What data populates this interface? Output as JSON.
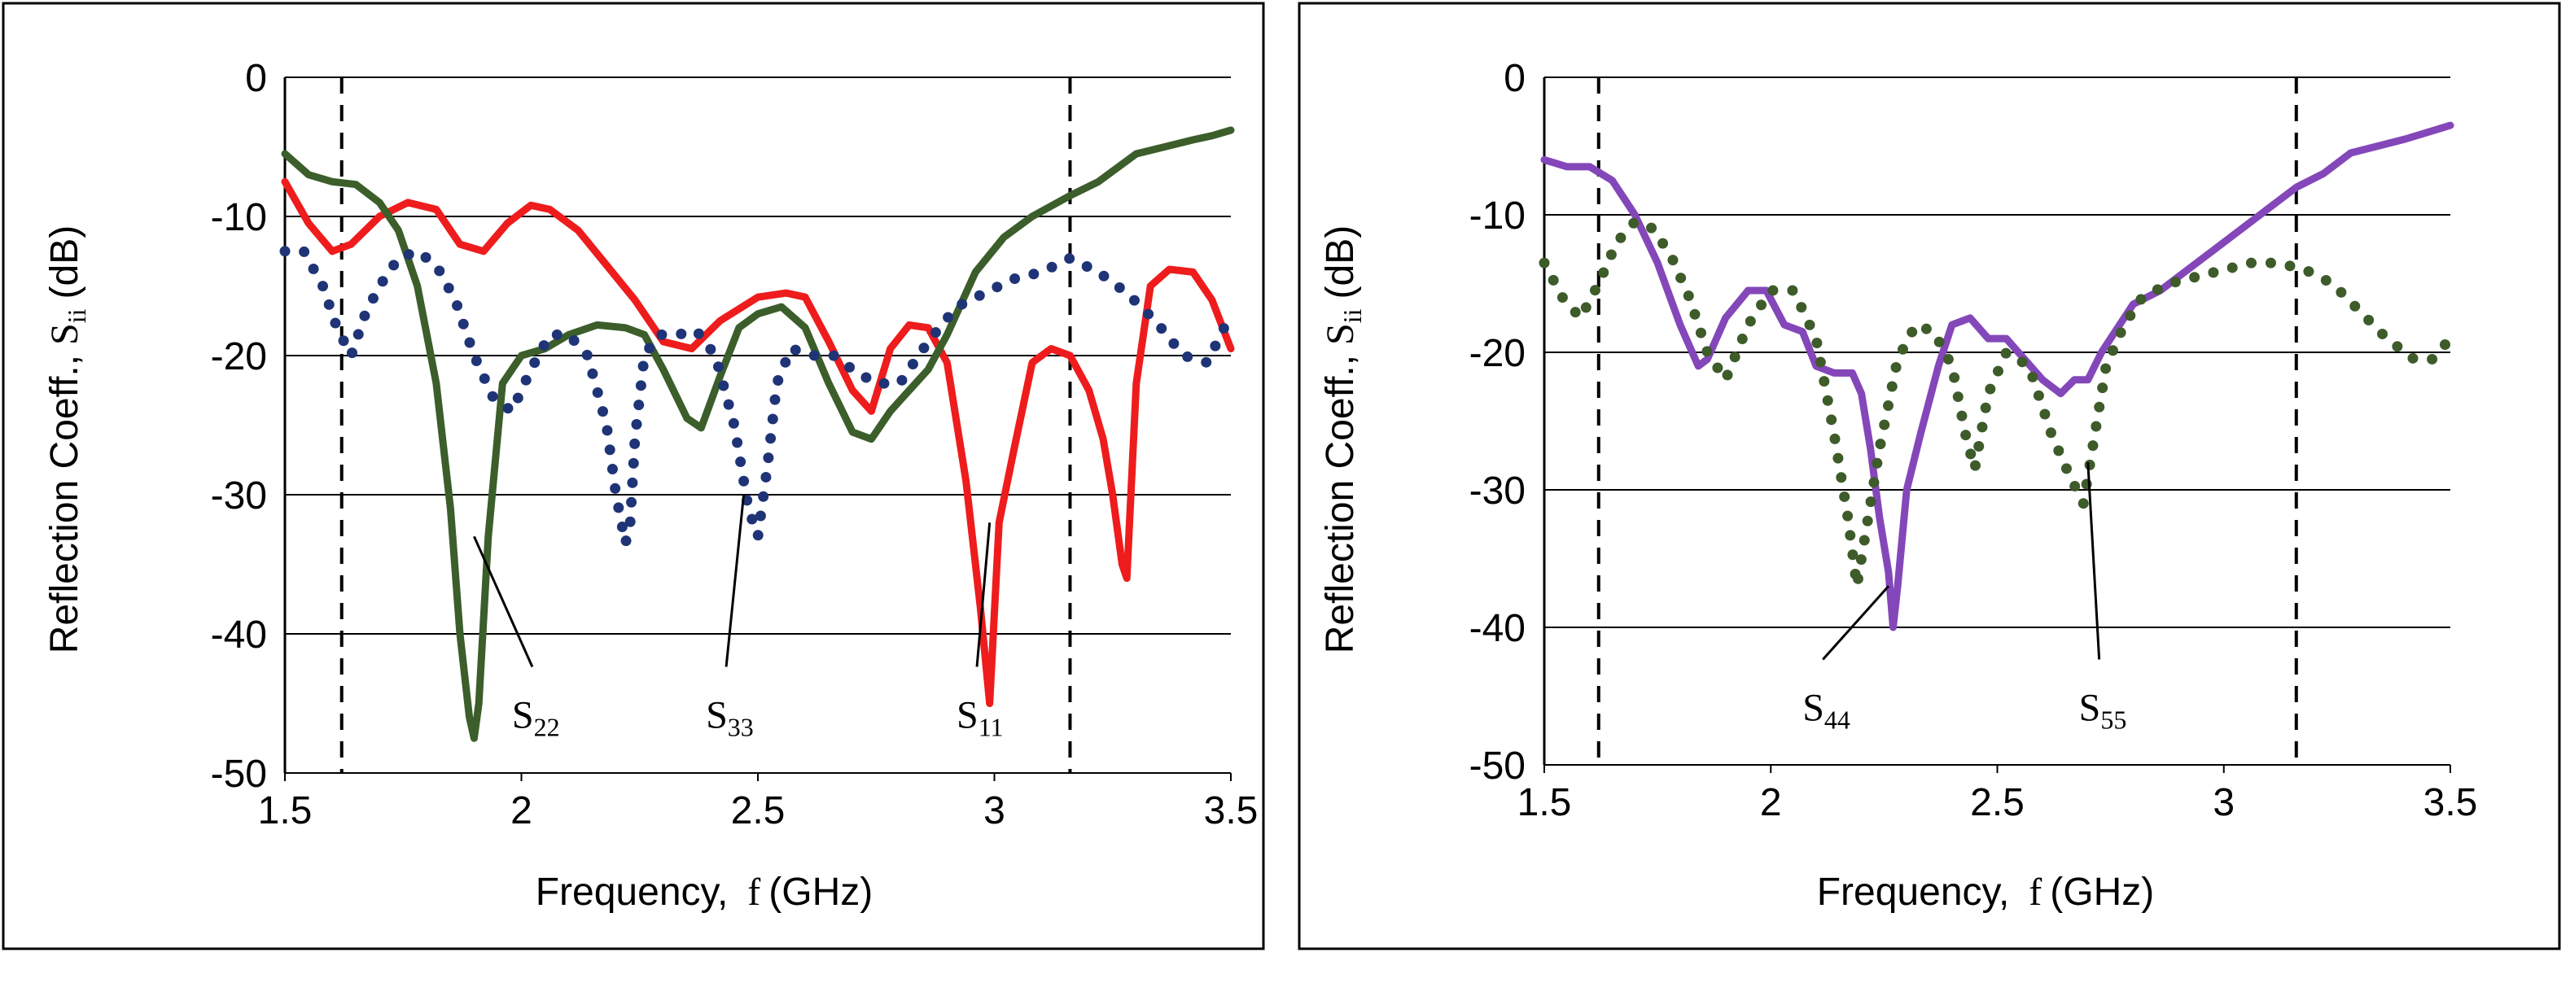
{
  "figure": {
    "panels": [
      {
        "id": "left",
        "xlabel": "Frequency,",
        "xlabel_symbol": "f",
        "xlabel_unit": "(GHz)",
        "ylabel": "Reflection Coeff.,",
        "ylabel_symbol": "S",
        "ylabel_sub": "ii",
        "ylabel_unit": "(dB)"
      },
      {
        "id": "right",
        "xlabel": "Frequency,",
        "xlabel_symbol": "f",
        "xlabel_unit": "(GHz)",
        "ylabel": "Reflection Coeff.,",
        "ylabel_symbol": "S",
        "ylabel_sub": "ii",
        "ylabel_unit": "(dB)"
      }
    ]
  },
  "chart_data": [
    {
      "type": "line",
      "panel": "left",
      "title": "",
      "xlim": [
        1.5,
        3.5
      ],
      "ylim": [
        -50,
        0
      ],
      "xticks": [
        "1.5",
        "2",
        "2.5",
        "3",
        "3.5"
      ],
      "yticks": [
        "0",
        "-10",
        "-20",
        "-30",
        "-40",
        "-50"
      ],
      "xtick_values": [
        1.5,
        2,
        2.5,
        3,
        3.5
      ],
      "ytick_values": [
        0,
        -10,
        -20,
        -30,
        -40,
        -50
      ],
      "grid": "horizontal",
      "vlines": [
        1.62,
        3.16
      ],
      "series": [
        {
          "name": "S11",
          "label_main": "S",
          "label_sub": "11",
          "color": "#ee1c1c",
          "style": "solid",
          "label_at": [
            2.92,
            -45
          ],
          "pointer_to": [
            2.99,
            -32
          ],
          "x": [
            1.5,
            1.55,
            1.6,
            1.64,
            1.7,
            1.76,
            1.82,
            1.87,
            1.92,
            1.97,
            2.02,
            2.06,
            2.12,
            2.18,
            2.24,
            2.3,
            2.36,
            2.42,
            2.5,
            2.56,
            2.6,
            2.65,
            2.7,
            2.74,
            2.78,
            2.82,
            2.86,
            2.9,
            2.94,
            2.97,
            2.99,
            3.01,
            3.04,
            3.08,
            3.12,
            3.16,
            3.2,
            3.23,
            3.25,
            3.27,
            3.28,
            3.3,
            3.33,
            3.37,
            3.42,
            3.46,
            3.5
          ],
          "y": [
            -7.5,
            -10.5,
            -12.5,
            -12,
            -10,
            -9,
            -9.5,
            -12,
            -12.5,
            -10.5,
            -9.2,
            -9.5,
            -11,
            -13.5,
            -16,
            -19,
            -19.5,
            -17.5,
            -15.8,
            -15.5,
            -15.8,
            -19,
            -22.5,
            -24,
            -19.5,
            -17.8,
            -18,
            -20.5,
            -29,
            -38,
            -45,
            -32,
            -27,
            -20.5,
            -19.5,
            -20,
            -22.5,
            -26,
            -30,
            -35,
            -36,
            -22,
            -15,
            -13.8,
            -14,
            -16,
            -19.5
          ]
        },
        {
          "name": "S22",
          "label_main": "S",
          "label_sub": "22",
          "color": "#3b5e2b",
          "style": "solid",
          "label_at": [
            1.98,
            -45
          ],
          "pointer_to": [
            1.9,
            -33
          ],
          "x": [
            1.5,
            1.55,
            1.6,
            1.65,
            1.7,
            1.74,
            1.78,
            1.82,
            1.85,
            1.87,
            1.89,
            1.9,
            1.91,
            1.93,
            1.96,
            2.0,
            2.05,
            2.1,
            2.16,
            2.22,
            2.26,
            2.3,
            2.35,
            2.38,
            2.42,
            2.46,
            2.5,
            2.55,
            2.6,
            2.65,
            2.7,
            2.74,
            2.78,
            2.82,
            2.86,
            2.9,
            2.96,
            3.02,
            3.08,
            3.16,
            3.22,
            3.3,
            3.36,
            3.42,
            3.46,
            3.5
          ],
          "y": [
            -5.5,
            -7,
            -7.5,
            -7.7,
            -9,
            -11,
            -15,
            -22,
            -31,
            -40,
            -46,
            -47.5,
            -45,
            -33,
            -22,
            -20,
            -19.5,
            -18.5,
            -17.8,
            -18,
            -18.5,
            -21,
            -24.5,
            -25.2,
            -21.5,
            -18,
            -17,
            -16.5,
            -18,
            -22,
            -25.5,
            -26,
            -24,
            -22.5,
            -21,
            -18.5,
            -14,
            -11.5,
            -10,
            -8.5,
            -7.5,
            -5.5,
            -5,
            -4.5,
            -4.2,
            -3.8
          ]
        },
        {
          "name": "S33",
          "label_main": "S",
          "label_sub": "33",
          "color": "#1f3477",
          "style": "dotted",
          "label_at": [
            2.39,
            -45
          ],
          "pointer_to": [
            2.47,
            -30
          ],
          "x": [
            1.5,
            1.54,
            1.58,
            1.61,
            1.64,
            1.67,
            1.7,
            1.74,
            1.78,
            1.82,
            1.86,
            1.9,
            1.94,
            1.98,
            2.02,
            2.06,
            2.1,
            2.14,
            2.18,
            2.2,
            2.22,
            2.23,
            2.24,
            2.26,
            2.29,
            2.33,
            2.37,
            2.41,
            2.45,
            2.48,
            2.5,
            2.52,
            2.54,
            2.57,
            2.62,
            2.66,
            2.7,
            2.75,
            2.8,
            2.86,
            2.92,
            2.98,
            3.04,
            3.1,
            3.16,
            3.22,
            3.28,
            3.34,
            3.4,
            3.45,
            3.5
          ],
          "y": [
            -12.5,
            -12.5,
            -15,
            -18,
            -20,
            -17,
            -15,
            -13,
            -12.5,
            -13.5,
            -16,
            -20,
            -23,
            -24,
            -21,
            -18.5,
            -18.5,
            -20,
            -25,
            -30,
            -33.5,
            -32,
            -26,
            -20,
            -18.5,
            -18.5,
            -18.2,
            -20,
            -25,
            -31,
            -33,
            -28,
            -22,
            -19.5,
            -20,
            -20,
            -21,
            -22,
            -22,
            -19,
            -16.5,
            -15.5,
            -14.5,
            -14,
            -13,
            -14,
            -15.5,
            -17.5,
            -20,
            -20.5,
            -17
          ]
        }
      ]
    },
    {
      "type": "line",
      "panel": "right",
      "title": "",
      "xlim": [
        1.5,
        3.5
      ],
      "ylim": [
        -50,
        0
      ],
      "xticks": [
        "1.5",
        "2",
        "2.5",
        "3",
        "3.5"
      ],
      "yticks": [
        "0",
        "-10",
        "-20",
        "-30",
        "-40",
        "-50"
      ],
      "xtick_values": [
        1.5,
        2,
        2.5,
        3,
        3.5
      ],
      "ytick_values": [
        0,
        -10,
        -20,
        -30,
        -40,
        -50
      ],
      "grid": "horizontal",
      "vlines": [
        1.62,
        3.16
      ],
      "series": [
        {
          "name": "S44",
          "label_main": "S",
          "label_sub": "44",
          "color": "#8447b9",
          "style": "solid",
          "label_at": [
            2.07,
            -45
          ],
          "pointer_to": [
            2.26,
            -37
          ],
          "x": [
            1.5,
            1.55,
            1.6,
            1.65,
            1.7,
            1.75,
            1.8,
            1.84,
            1.86,
            1.9,
            1.95,
            1.99,
            2.03,
            2.07,
            2.1,
            2.14,
            2.18,
            2.2,
            2.22,
            2.24,
            2.26,
            2.27,
            2.28,
            2.3,
            2.33,
            2.37,
            2.4,
            2.44,
            2.48,
            2.52,
            2.56,
            2.6,
            2.64,
            2.67,
            2.7,
            2.73,
            2.76,
            2.8,
            2.86,
            2.92,
            2.98,
            3.04,
            3.1,
            3.16,
            3.22,
            3.28,
            3.34,
            3.4,
            3.45,
            3.5
          ],
          "y": [
            -6,
            -6.5,
            -6.5,
            -7.5,
            -10,
            -13.5,
            -18,
            -21,
            -20.5,
            -17.5,
            -15.5,
            -15.5,
            -18,
            -18.5,
            -21,
            -21.5,
            -21.5,
            -23,
            -27,
            -32,
            -36,
            -40,
            -37,
            -30,
            -26,
            -21,
            -18,
            -17.5,
            -19,
            -19,
            -20.5,
            -22,
            -23,
            -22,
            -22,
            -20,
            -18.5,
            -16.5,
            -15.5,
            -14,
            -12.5,
            -11,
            -9.5,
            -8,
            -7,
            -5.5,
            -5,
            -4.5,
            -4,
            -3.5
          ]
        },
        {
          "name": "S55",
          "label_main": "S",
          "label_sub": "55",
          "color": "#3e5b2a",
          "style": "dotted",
          "label_at": [
            2.68,
            -45
          ],
          "pointer_to": [
            2.7,
            -28
          ],
          "x": [
            1.5,
            1.54,
            1.58,
            1.62,
            1.66,
            1.7,
            1.74,
            1.78,
            1.82,
            1.86,
            1.9,
            1.95,
            2.0,
            2.05,
            2.1,
            2.14,
            2.17,
            2.19,
            2.21,
            2.24,
            2.28,
            2.32,
            2.36,
            2.4,
            2.43,
            2.45,
            2.48,
            2.52,
            2.57,
            2.62,
            2.66,
            2.69,
            2.71,
            2.74,
            2.78,
            2.82,
            2.88,
            2.94,
            3.0,
            3.06,
            3.12,
            3.18,
            3.24,
            3.3,
            3.36,
            3.42,
            3.46,
            3.5
          ],
          "y": [
            -13.5,
            -16,
            -17.5,
            -15,
            -12,
            -10.5,
            -11,
            -13,
            -16,
            -20,
            -22,
            -18,
            -15.5,
            -15.5,
            -19,
            -26,
            -32,
            -37,
            -33,
            -27,
            -20.5,
            -18,
            -18.5,
            -21,
            -26,
            -28.5,
            -23,
            -20,
            -21,
            -26,
            -29,
            -31,
            -27,
            -21,
            -18,
            -16,
            -15,
            -14.5,
            -14,
            -13.5,
            -13.5,
            -14,
            -15,
            -17,
            -19,
            -20.5,
            -20.5,
            -19
          ]
        }
      ]
    }
  ]
}
